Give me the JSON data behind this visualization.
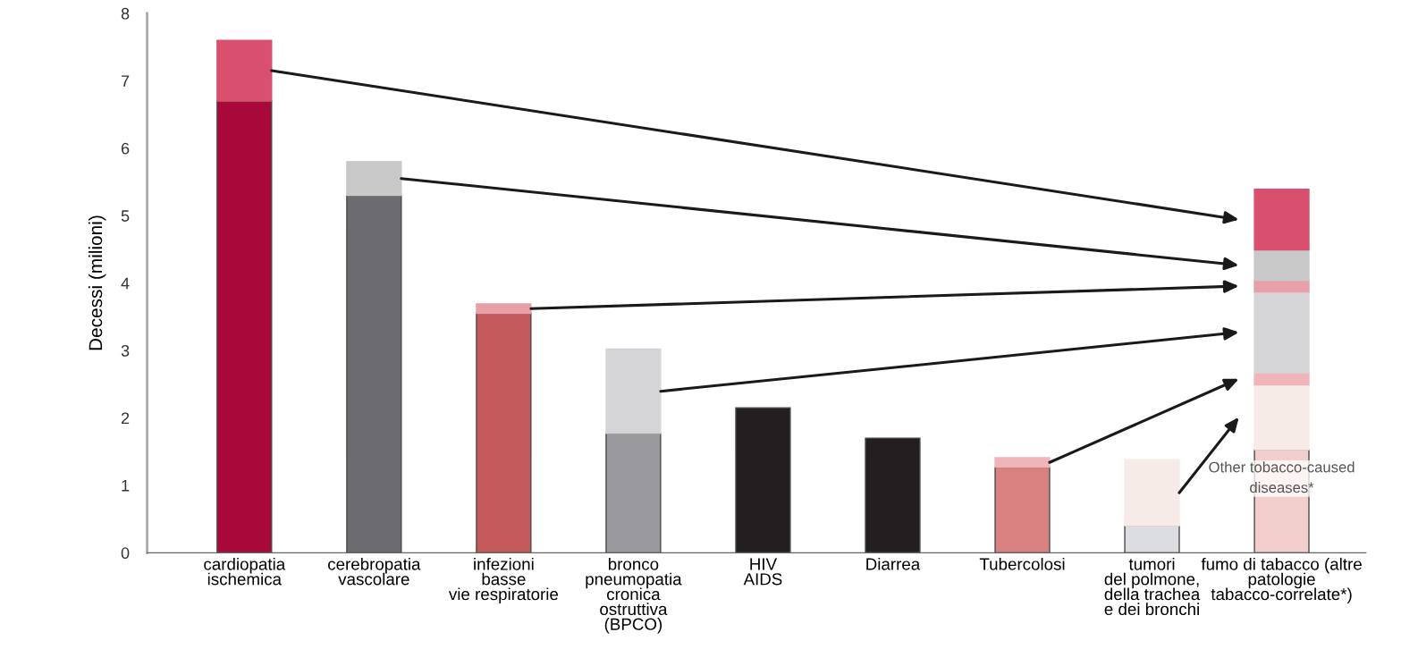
{
  "chart_data": {
    "type": "bar",
    "stacked": true,
    "ylabel": "Decessi (milioni)",
    "categories": [
      "cardiopatia\nischemica",
      "cerebropatia\nvascolare",
      "infezioni\nbasse\nvie respiratorie",
      "bronco\npneumopatia\ncronica\nostruttiva\n(BPCO)",
      "HIV\nAIDS",
      "Diarrea",
      "Tubercolosi",
      "tumori\ndel polmone,\ndella trachea\ne dei bronchi",
      "fumo di tabacco (altre\npatologie\ntabacco-correlate*)"
    ],
    "series": [
      {
        "colors": [
          "#a8083a",
          "#6b6b70",
          "#c45a5a",
          "#9a9a9e",
          "#231f20",
          "#231f20",
          "#d98080",
          "#dcdde0",
          "#f2cfcd"
        ],
        "values": [
          6.7,
          5.3,
          3.55,
          1.77,
          2.15,
          1.7,
          1.27,
          0.4,
          1.53
        ]
      },
      {
        "color": "#f7ebe8",
        "values": [
          null,
          null,
          null,
          null,
          null,
          null,
          null,
          0.98,
          0.96
        ]
      },
      {
        "color": "#f0b5b8",
        "values": [
          null,
          null,
          null,
          null,
          null,
          null,
          0.14,
          null,
          0.18
        ]
      },
      {
        "color": "#d5d5d8",
        "values": [
          null,
          null,
          null,
          1.25,
          null,
          null,
          null,
          null,
          1.2
        ]
      },
      {
        "color": "#e8a0a8",
        "values": [
          null,
          null,
          0.14,
          null,
          null,
          null,
          null,
          null,
          0.17
        ]
      },
      {
        "color": "#c8c8c8",
        "values": [
          null,
          0.5,
          null,
          null,
          null,
          null,
          null,
          null,
          0.45
        ]
      },
      {
        "color": "#d9506e",
        "values": [
          0.9,
          null,
          null,
          null,
          null,
          null,
          null,
          null,
          0.9
        ]
      }
    ],
    "ylim": [
      0,
      8
    ],
    "yticks": [
      0,
      1,
      2,
      3,
      4,
      5,
      6,
      7,
      8
    ],
    "grid": false,
    "legend": false,
    "annotations": [
      "Other tobacco-caused\ndiseases*"
    ]
  }
}
